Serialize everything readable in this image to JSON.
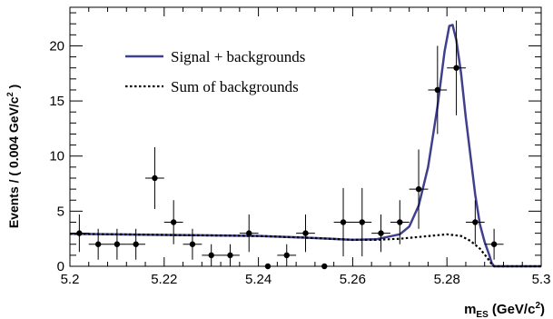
{
  "chart_data": {
    "type": "scatter",
    "xlabel": {
      "main": "m",
      "sub": "ES",
      "unit_prefix": " (GeV/c",
      "sup": "2",
      "unit_suffix": ")"
    },
    "ylabel": {
      "main": "Events / ( 0.004 GeV/c",
      "sup": "2",
      "suffix": " )"
    },
    "xlim": [
      5.2,
      5.3
    ],
    "ylim": [
      0,
      23.5
    ],
    "x_ticks": [
      5.2,
      5.22,
      5.24,
      5.26,
      5.28,
      5.3
    ],
    "x_tick_labels": [
      "5.2",
      "5.22",
      "5.24",
      "5.26",
      "5.28",
      "5.3"
    ],
    "y_ticks": [
      0,
      5,
      10,
      15,
      20
    ],
    "y_tick_labels": [
      "0",
      "5",
      "10",
      "15",
      "20"
    ],
    "grid": false,
    "legend_position": "top-left",
    "series": [
      {
        "name": "Signal + backgrounds",
        "style": "solid",
        "color": "#3f3f8f",
        "points": [
          [
            5.2,
            2.95
          ],
          [
            5.21,
            2.9
          ],
          [
            5.22,
            2.85
          ],
          [
            5.23,
            2.8
          ],
          [
            5.24,
            2.75
          ],
          [
            5.25,
            2.6
          ],
          [
            5.255,
            2.5
          ],
          [
            5.26,
            2.4
          ],
          [
            5.265,
            2.45
          ],
          [
            5.27,
            2.9
          ],
          [
            5.272,
            3.6
          ],
          [
            5.274,
            5.5
          ],
          [
            5.276,
            9
          ],
          [
            5.278,
            14.5
          ],
          [
            5.2795,
            19.5
          ],
          [
            5.2805,
            21.8
          ],
          [
            5.2812,
            21.9
          ],
          [
            5.282,
            20.5
          ],
          [
            5.283,
            17.5
          ],
          [
            5.284,
            13.5
          ],
          [
            5.285,
            10
          ],
          [
            5.286,
            6.5
          ],
          [
            5.287,
            3.8
          ],
          [
            5.288,
            2.2
          ],
          [
            5.289,
            1
          ],
          [
            5.2895,
            0.3
          ],
          [
            5.29,
            0
          ],
          [
            5.3,
            0
          ]
        ]
      },
      {
        "name": "Sum of backgrounds",
        "style": "dotted",
        "color": "#000000",
        "points": [
          [
            5.2,
            2.95
          ],
          [
            5.21,
            2.9
          ],
          [
            5.22,
            2.85
          ],
          [
            5.23,
            2.8
          ],
          [
            5.24,
            2.75
          ],
          [
            5.25,
            2.6
          ],
          [
            5.255,
            2.5
          ],
          [
            5.26,
            2.4
          ],
          [
            5.265,
            2.4
          ],
          [
            5.27,
            2.5
          ],
          [
            5.275,
            2.7
          ],
          [
            5.28,
            2.9
          ],
          [
            5.283,
            2.75
          ],
          [
            5.285,
            2.3
          ],
          [
            5.287,
            1.6
          ],
          [
            5.2885,
            0.8
          ],
          [
            5.2895,
            0.2
          ],
          [
            5.29,
            0
          ],
          [
            5.3,
            0
          ]
        ]
      },
      {
        "name": "Data",
        "style": "markers",
        "color": "#000000",
        "x_half_width": 0.002,
        "points": [
          {
            "x": 5.202,
            "y": 3,
            "err": 1.7
          },
          {
            "x": 5.206,
            "y": 2,
            "err": 1.4
          },
          {
            "x": 5.21,
            "y": 2,
            "err": 1.4
          },
          {
            "x": 5.214,
            "y": 2,
            "err": 1.4
          },
          {
            "x": 5.218,
            "y": 8,
            "err": 2.8
          },
          {
            "x": 5.222,
            "y": 4,
            "err": 2
          },
          {
            "x": 5.226,
            "y": 2,
            "err": 1.4
          },
          {
            "x": 5.23,
            "y": 1,
            "err": 1
          },
          {
            "x": 5.234,
            "y": 1,
            "err": 1
          },
          {
            "x": 5.238,
            "y": 3,
            "err": 1.7
          },
          {
            "x": 5.242,
            "y": 0,
            "err": 0
          },
          {
            "x": 5.246,
            "y": 1,
            "err": 1
          },
          {
            "x": 5.25,
            "y": 3,
            "err": 1.7
          },
          {
            "x": 5.254,
            "y": 0,
            "err": 0
          },
          {
            "x": 5.258,
            "y": 4,
            "err": 3.1
          },
          {
            "x": 5.262,
            "y": 4,
            "err": 3.1
          },
          {
            "x": 5.266,
            "y": 3,
            "err": 1.7
          },
          {
            "x": 5.27,
            "y": 4,
            "err": 2
          },
          {
            "x": 5.274,
            "y": 7,
            "err": 3.6
          },
          {
            "x": 5.278,
            "y": 16,
            "err": 4
          },
          {
            "x": 5.282,
            "y": 18,
            "err": 4.3
          },
          {
            "x": 5.286,
            "y": 4,
            "err": 2
          },
          {
            "x": 5.29,
            "y": 2,
            "err": 1.4
          }
        ]
      }
    ]
  }
}
